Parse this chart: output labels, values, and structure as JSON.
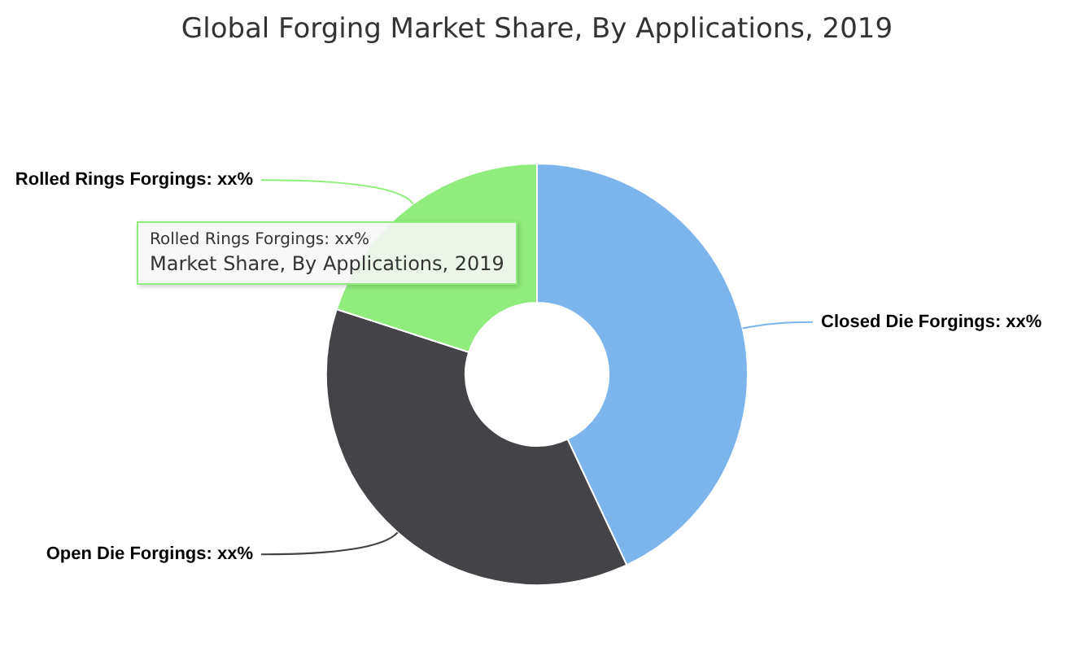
{
  "chart_data": {
    "type": "donut",
    "title": "Global Forging Market Share, By Applications, 2019",
    "categories": [
      "Closed Die Forgings",
      "Open Die Forgings",
      "Rolled Rings Forgings"
    ],
    "values": [
      43,
      37,
      20
    ],
    "value_labels": [
      "xx%",
      "xx%",
      "xx%"
    ],
    "colors": [
      "#7cb5ec",
      "#434348",
      "#90ed7d"
    ],
    "annotations": [
      "Rolled Rings Forgings: xx%",
      "Market Share, By Applications, 2019"
    ]
  }
}
